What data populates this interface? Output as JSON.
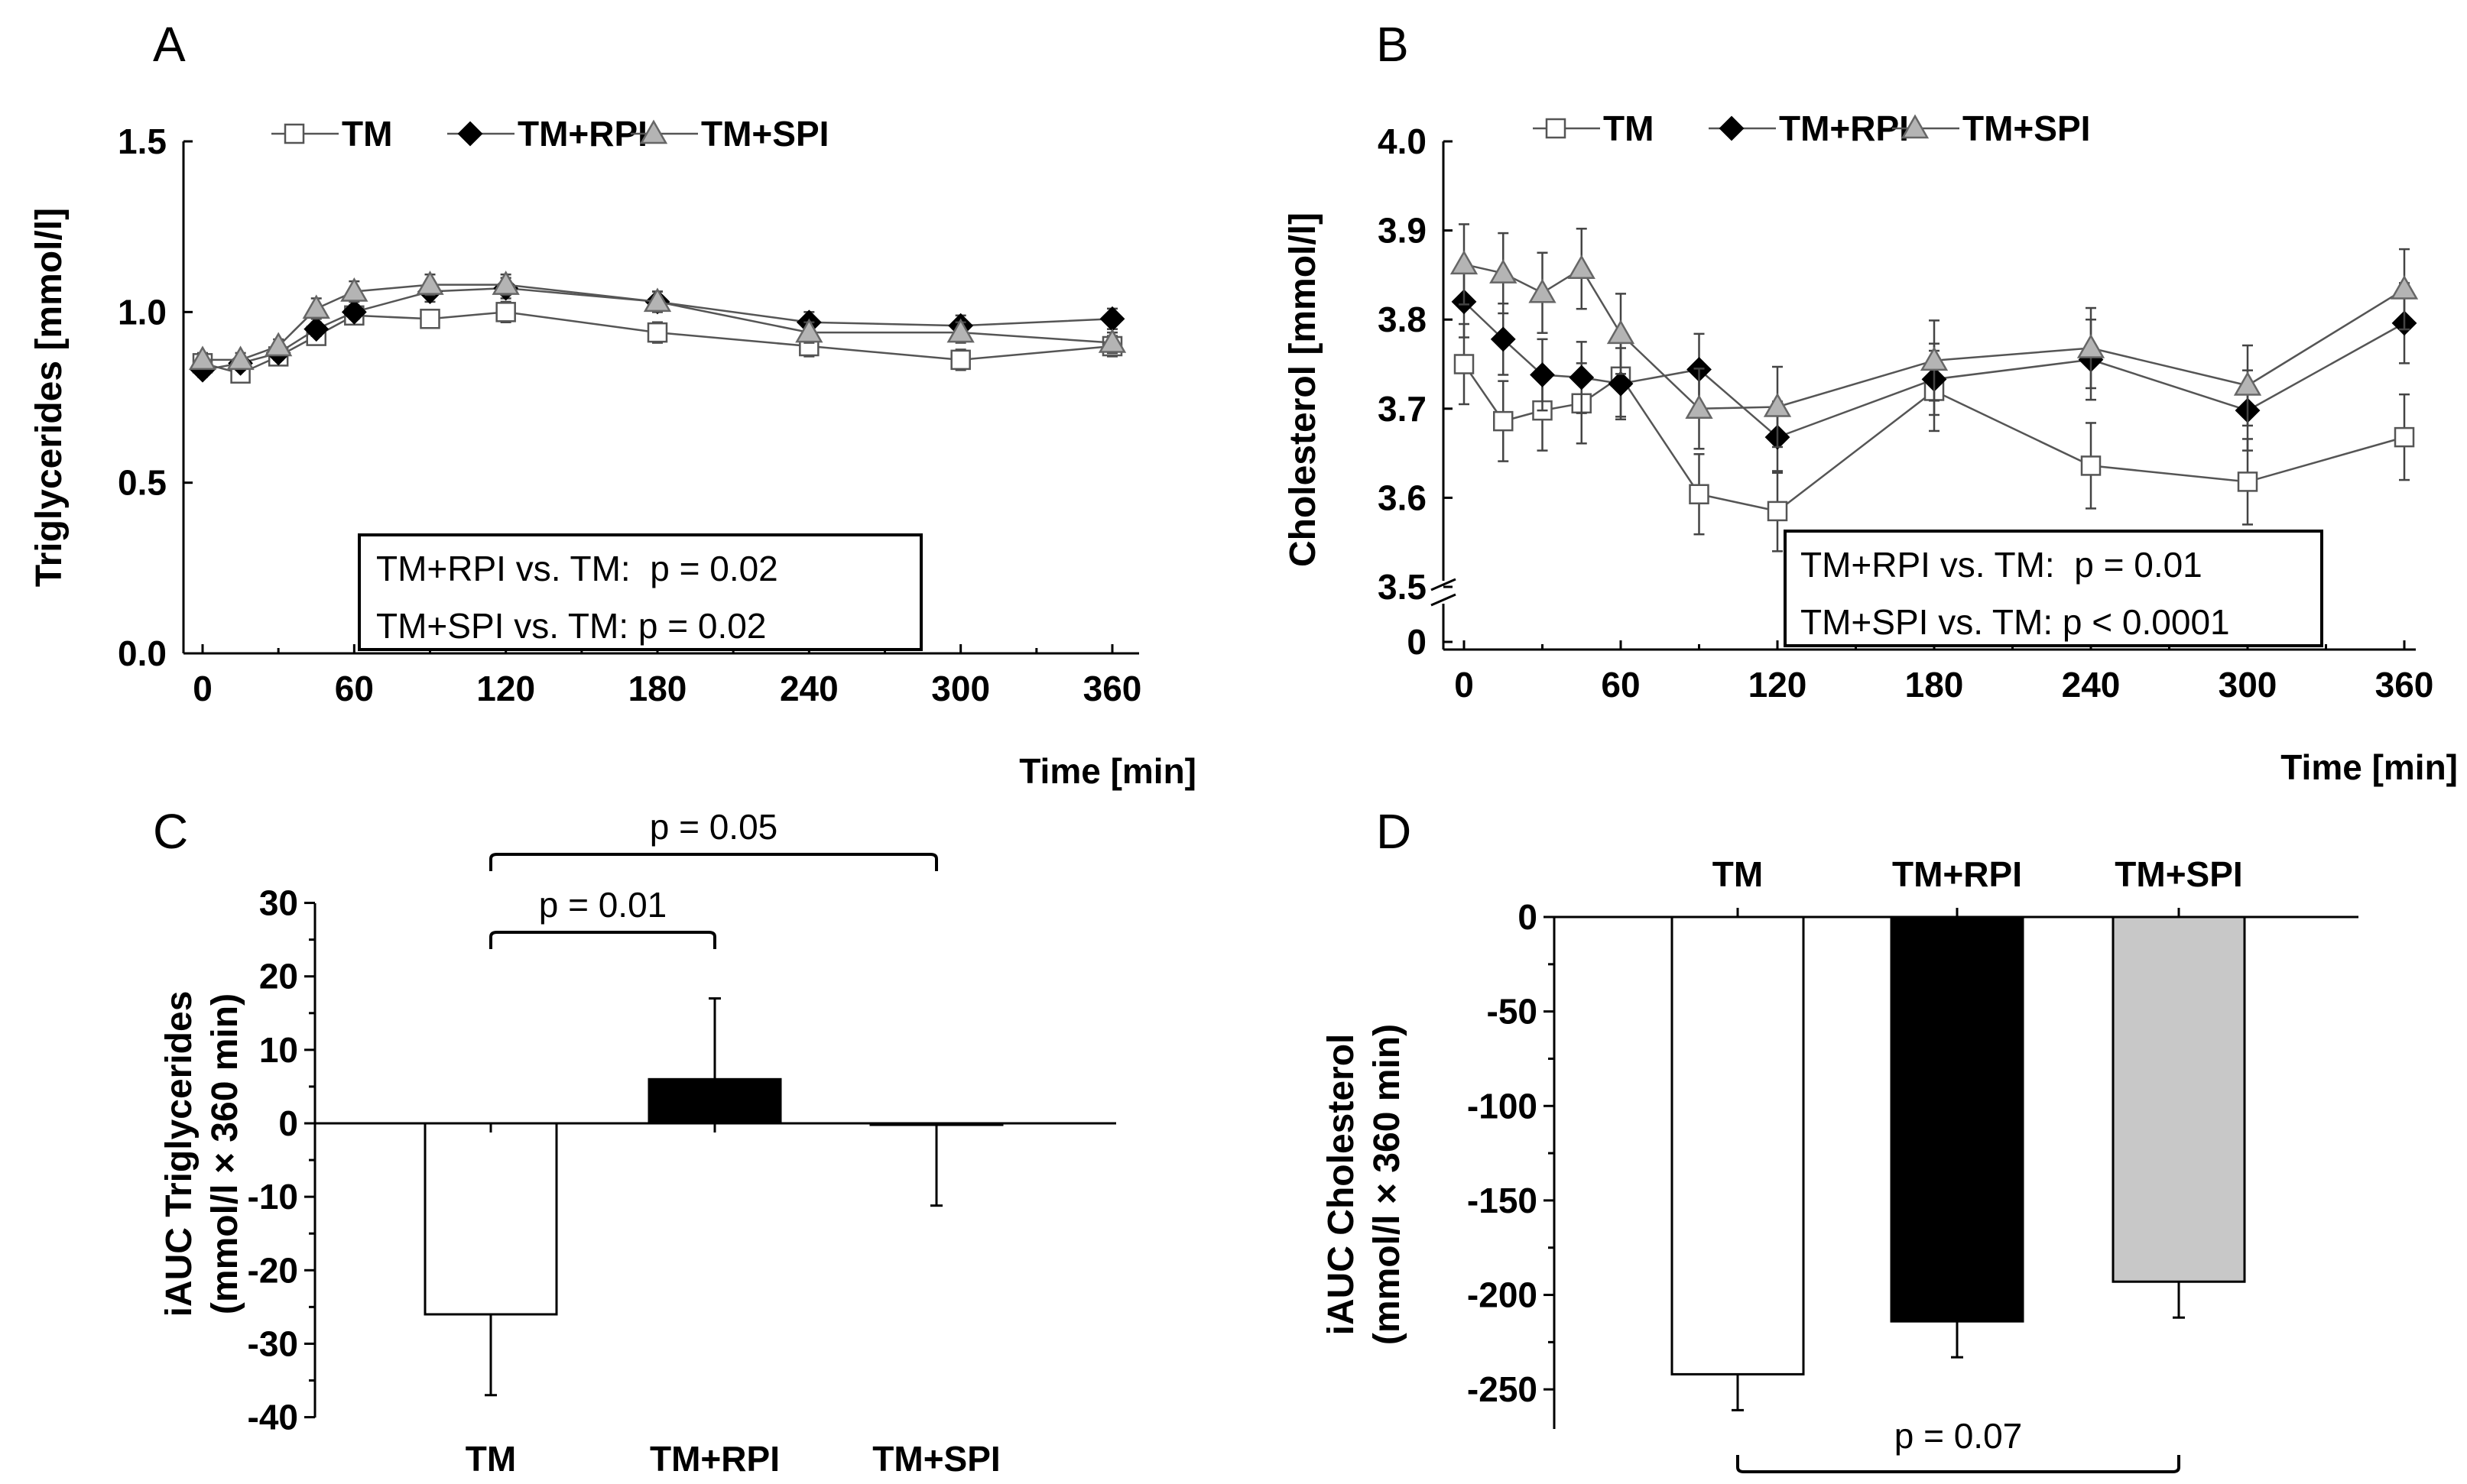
{
  "chart_data": [
    {
      "panel": "A",
      "type": "line",
      "xlabel": "Time [min]",
      "ylabel": "Triglycerides [mmol/l]",
      "xlim": [
        0,
        360
      ],
      "ylim": [
        0.0,
        1.5
      ],
      "xticks": [
        "0",
        "60",
        "120",
        "180",
        "240",
        "300",
        "360"
      ],
      "yticks": [
        "0.0",
        "0.5",
        "1.0",
        "1.5"
      ],
      "legend": [
        "TM",
        "TM+RPI",
        "TM+SPI"
      ],
      "x": [
        0,
        15,
        30,
        45,
        60,
        90,
        120,
        180,
        240,
        300,
        360
      ],
      "series": [
        {
          "name": "TM",
          "style": "open-square",
          "values": [
            0.85,
            0.82,
            0.87,
            0.93,
            0.99,
            0.98,
            1.0,
            0.94,
            0.9,
            0.86,
            0.9
          ],
          "errors": [
            0.02,
            0.02,
            0.02,
            0.02,
            0.02,
            0.02,
            0.03,
            0.03,
            0.03,
            0.03,
            0.03
          ]
        },
        {
          "name": "TM+RPI",
          "style": "filled-diamond",
          "values": [
            0.83,
            0.85,
            0.88,
            0.95,
            1.0,
            1.06,
            1.07,
            1.03,
            0.97,
            0.96,
            0.98
          ],
          "errors": [
            0.02,
            0.02,
            0.02,
            0.02,
            0.02,
            0.03,
            0.03,
            0.03,
            0.03,
            0.03,
            0.03
          ]
        },
        {
          "name": "TM+SPI",
          "style": "gray-triangle",
          "values": [
            0.86,
            0.86,
            0.9,
            1.01,
            1.06,
            1.08,
            1.08,
            1.03,
            0.94,
            0.94,
            0.91
          ],
          "errors": [
            0.02,
            0.02,
            0.02,
            0.03,
            0.03,
            0.03,
            0.03,
            0.03,
            0.03,
            0.03,
            0.03
          ]
        }
      ],
      "annotation": [
        "TM+RPI vs. TM:  p = 0.02",
        "TM+SPI vs. TM: p = 0.02"
      ]
    },
    {
      "panel": "B",
      "type": "line",
      "xlabel": "Time [min]",
      "ylabel": "Cholesterol [mmol/l]",
      "xlim": [
        0,
        360
      ],
      "ylim": [
        3.5,
        4.0
      ],
      "axis_break": true,
      "xticks": [
        "0",
        "60",
        "120",
        "180",
        "240",
        "300",
        "360"
      ],
      "yticks": [
        "0",
        "3.5",
        "3.6",
        "3.7",
        "3.8",
        "3.9",
        "4.0"
      ],
      "legend": [
        "TM",
        "TM+RPI",
        "TM+SPI"
      ],
      "x": [
        0,
        15,
        30,
        45,
        60,
        90,
        120,
        180,
        240,
        300,
        360
      ],
      "series": [
        {
          "name": "TM",
          "style": "open-square",
          "values": [
            3.75,
            3.686,
            3.698,
            3.706,
            3.736,
            3.604,
            3.585,
            3.72,
            3.636,
            3.618,
            3.668
          ],
          "errors": [
            0.045,
            0.045,
            0.045,
            0.045,
            0.045,
            0.045,
            0.045,
            0.045,
            0.048,
            0.048,
            0.048
          ]
        },
        {
          "name": "TM+RPI",
          "style": "filled-diamond",
          "values": [
            3.82,
            3.778,
            3.738,
            3.735,
            3.728,
            3.744,
            3.668,
            3.733,
            3.755,
            3.698,
            3.796
          ],
          "errors": [
            0.04,
            0.04,
            0.04,
            0.04,
            0.04,
            0.04,
            0.04,
            0.04,
            0.045,
            0.045,
            0.045
          ]
        },
        {
          "name": "TM+SPI",
          "style": "gray-triangle",
          "values": [
            3.862,
            3.852,
            3.83,
            3.857,
            3.784,
            3.7,
            3.702,
            3.754,
            3.768,
            3.726,
            3.834
          ],
          "errors": [
            0.045,
            0.045,
            0.045,
            0.045,
            0.045,
            0.045,
            0.045,
            0.045,
            0.045,
            0.045,
            0.045
          ]
        }
      ],
      "annotation": [
        "TM+RPI vs. TM:  p = 0.01",
        "TM+SPI vs. TM: p < 0.0001"
      ]
    },
    {
      "panel": "C",
      "type": "bar",
      "ylabel": [
        "iAUC Triglycerides",
        "(mmol/l × 360 min)"
      ],
      "ylim": [
        -40,
        30
      ],
      "yticks": [
        "30",
        "20",
        "10",
        "0",
        "-10",
        "-20",
        "-30",
        "-40"
      ],
      "categories": [
        "TM",
        "TM+RPI",
        "TM+SPI"
      ],
      "values": [
        -26,
        6,
        -0.2
      ],
      "errors": [
        11,
        11,
        11
      ],
      "colors": [
        "#ffffff",
        "#000000",
        "#c8c8c8"
      ],
      "comparisons": [
        {
          "from": "TM",
          "to": "TM+SPI",
          "label": "p = 0.05"
        },
        {
          "from": "TM",
          "to": "TM+RPI",
          "label": "p = 0.01"
        }
      ]
    },
    {
      "panel": "D",
      "type": "bar",
      "ylabel": [
        "iAUC Cholesterol",
        "(mmol/l × 360 min)"
      ],
      "ylim": [
        -275,
        0
      ],
      "yticks": [
        "0",
        "-50",
        "-100",
        "-150",
        "-200",
        "-250"
      ],
      "categories": [
        "TM",
        "TM+RPI",
        "TM+SPI"
      ],
      "values": [
        -242,
        -214,
        -193
      ],
      "errors": [
        19,
        19,
        19
      ],
      "colors": [
        "#ffffff",
        "#000000",
        "#c8c8c8"
      ],
      "comparisons": [
        {
          "from": "TM",
          "to": "TM+SPI",
          "label": "p = 0.07"
        }
      ]
    }
  ]
}
